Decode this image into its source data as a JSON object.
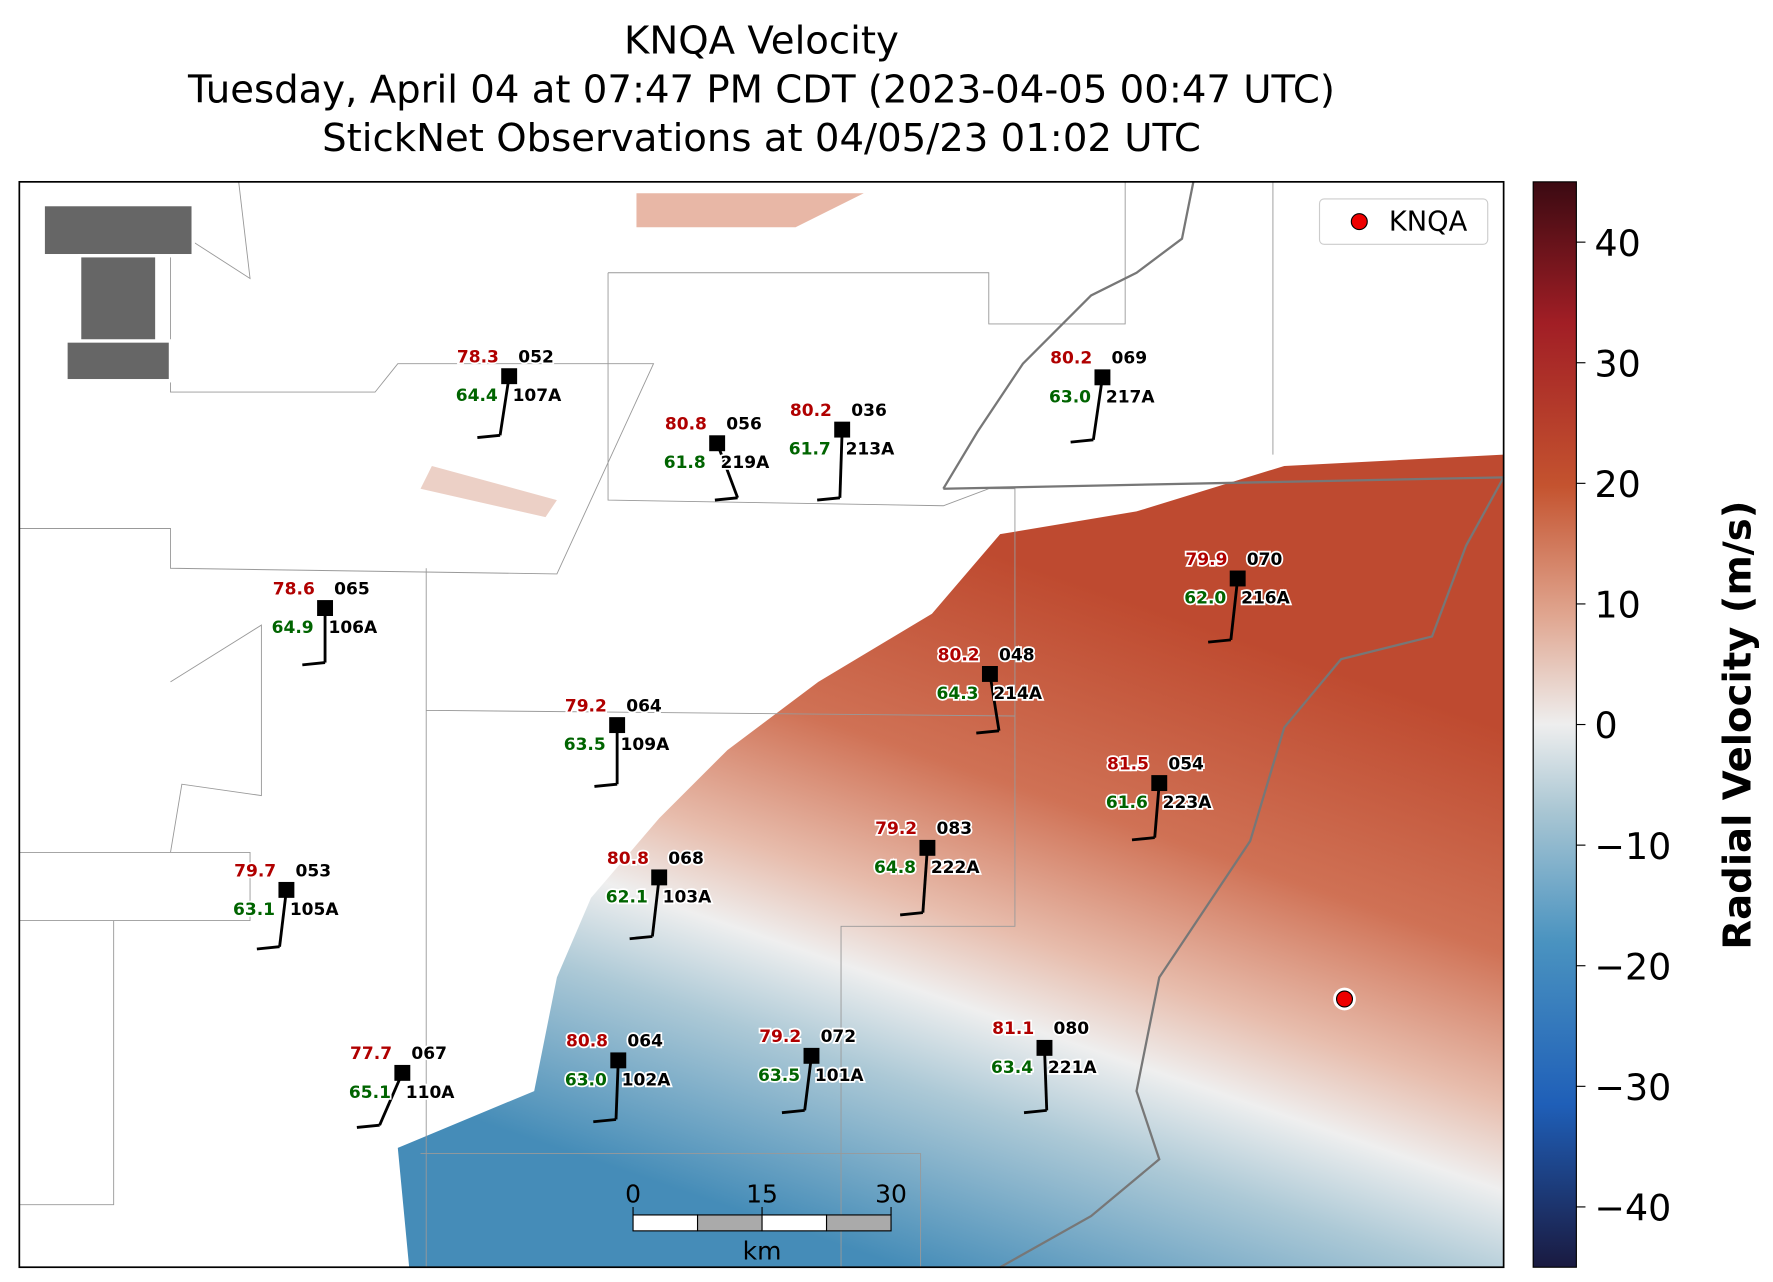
{
  "title": {
    "lines": [
      "KNQA Velocity",
      "Tuesday, April 04 at 07:47 PM CDT (2023-04-05 00:47 UTC)",
      "StickNet Observations at 04/05/23 01:02 UTC"
    ]
  },
  "legend": {
    "label": "KNQA"
  },
  "colorbar": {
    "label": "Radial Velocity (m/s)",
    "lim": [
      -45,
      45
    ],
    "ticks": [
      {
        "value": -40,
        "label": "−40"
      },
      {
        "value": -30,
        "label": "−30"
      },
      {
        "value": -20,
        "label": "−20"
      },
      {
        "value": -10,
        "label": "−10"
      },
      0,
      10,
      20,
      30,
      40
    ]
  },
  "scale_bar": {
    "ticks": [
      0,
      15,
      30
    ],
    "unit": "km"
  },
  "stations": [
    {
      "id": "107A",
      "temperature": "78.3",
      "dewpoint": "64.4",
      "pressure": "052"
    },
    {
      "id": "219A",
      "temperature": "80.8",
      "dewpoint": "61.8",
      "pressure": "056"
    },
    {
      "id": "213A",
      "temperature": "80.2",
      "dewpoint": "61.7",
      "pressure": "036"
    },
    {
      "id": "217A",
      "temperature": "80.2",
      "dewpoint": "63.0",
      "pressure": "069"
    },
    {
      "id": "106A",
      "temperature": "78.6",
      "dewpoint": "64.9",
      "pressure": "065"
    },
    {
      "id": "216A",
      "temperature": "79.9",
      "dewpoint": "62.0",
      "pressure": "070"
    },
    {
      "id": "214A",
      "temperature": "80.2",
      "dewpoint": "64.3",
      "pressure": "048"
    },
    {
      "id": "109A",
      "temperature": "79.2",
      "dewpoint": "63.5",
      "pressure": "064"
    },
    {
      "id": "223A",
      "temperature": "81.5",
      "dewpoint": "61.6",
      "pressure": "054"
    },
    {
      "id": "222A",
      "temperature": "79.2",
      "dewpoint": "64.8",
      "pressure": "083"
    },
    {
      "id": "103A",
      "temperature": "80.8",
      "dewpoint": "62.1",
      "pressure": "068"
    },
    {
      "id": "105A",
      "temperature": "79.7",
      "dewpoint": "63.1",
      "pressure": "053"
    },
    {
      "id": "221A",
      "temperature": "81.1",
      "dewpoint": "63.4",
      "pressure": "080"
    },
    {
      "id": "101A",
      "temperature": "79.2",
      "dewpoint": "63.5",
      "pressure": "072"
    },
    {
      "id": "102A",
      "temperature": "80.8",
      "dewpoint": "63.0",
      "pressure": "064"
    },
    {
      "id": "110A",
      "temperature": "77.7",
      "dewpoint": "65.1",
      "pressure": "067"
    }
  ]
}
